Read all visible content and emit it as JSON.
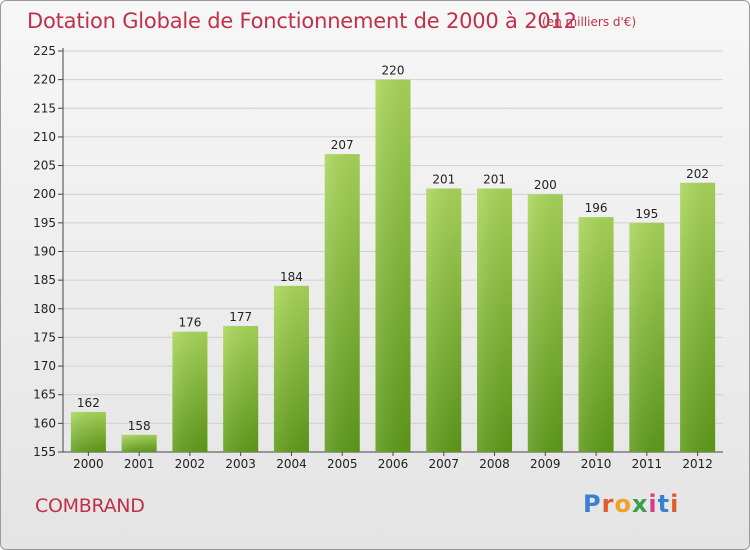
{
  "header": {
    "title": "Dotation Globale de Fonctionnement de 2000 à 2012",
    "subtitle": "(en milliers d'€)"
  },
  "footer": {
    "commune": "COMBRAND",
    "logo_letters": [
      "P",
      "r",
      "o",
      "x",
      "i",
      "t",
      "i"
    ],
    "logo_colors": [
      "#3b7fd0",
      "#e35a2f",
      "#f0a12a",
      "#3aa14a",
      "#d63c8c",
      "#3b7fd0",
      "#e35a2f"
    ]
  },
  "colors": {
    "bar_light": "#a9d65a",
    "bar_dark": "#5e9a1a",
    "title": "#c0304a"
  },
  "chart_data": {
    "type": "bar",
    "categories": [
      "2000",
      "2001",
      "2002",
      "2003",
      "2004",
      "2005",
      "2006",
      "2007",
      "2008",
      "2009",
      "2010",
      "2011",
      "2012"
    ],
    "values": [
      162,
      158,
      176,
      177,
      184,
      207,
      220,
      201,
      201,
      200,
      196,
      195,
      202
    ],
    "yticks": [
      "155",
      "160",
      "165",
      "170",
      "175",
      "180",
      "185",
      "190",
      "195",
      "200",
      "205",
      "210",
      "215",
      "220",
      "225"
    ],
    "ylim": [
      155,
      225
    ],
    "grid": true,
    "title": "Dotation Globale de Fonctionnement de 2000 à 2012",
    "xlabel": "",
    "ylabel": "(en milliers d'€)"
  }
}
